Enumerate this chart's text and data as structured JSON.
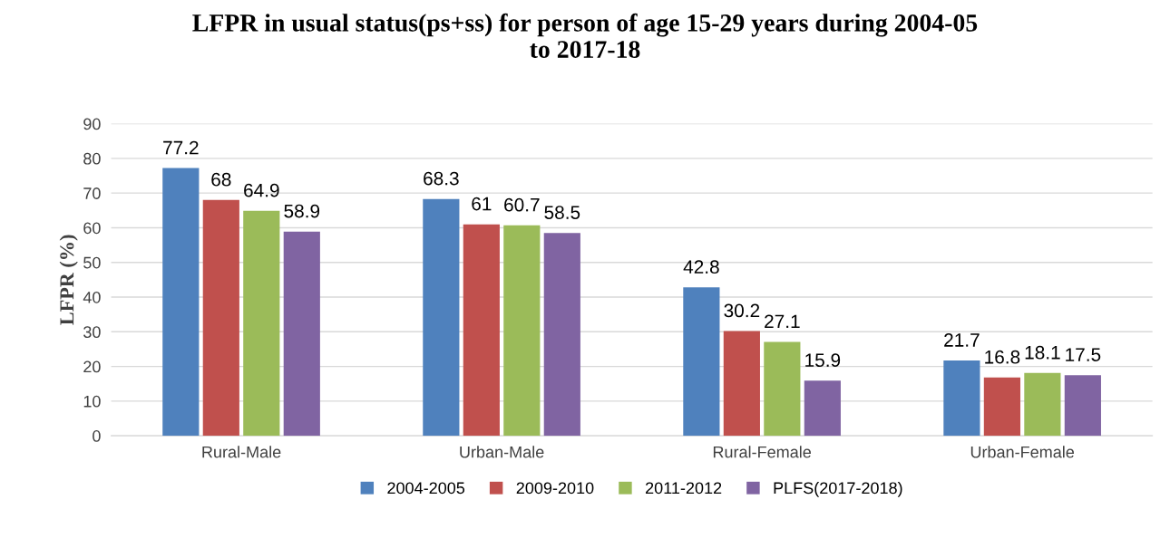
{
  "chart_data": {
    "type": "bar",
    "title": "LFPR in usual status(ps+ss) for person of age 15-29 years during 2004-05\nto 2017-18",
    "ylabel": "LFPR (%)",
    "categories": [
      "Rural-Male",
      "Urban-Male",
      "Rural-Female",
      "Urban-Female"
    ],
    "series": [
      {
        "name": "2004-2005",
        "color": "#4f81bd",
        "values": [
          77.2,
          68.3,
          42.8,
          21.7
        ]
      },
      {
        "name": "2009-2010",
        "color": "#c0504d",
        "values": [
          68,
          61,
          30.2,
          16.8
        ]
      },
      {
        "name": "2011-2012",
        "color": "#9bbb59",
        "values": [
          64.9,
          60.7,
          27.1,
          18.1
        ]
      },
      {
        "name": "PLFS(2017-2018)",
        "color": "#8064a2",
        "values": [
          58.9,
          58.5,
          15.9,
          17.5
        ]
      }
    ],
    "ylim": [
      0,
      90
    ],
    "yticks": [
      0,
      10,
      20,
      30,
      40,
      50,
      60,
      70,
      80,
      90
    ],
    "grid": "y",
    "legend": "bottom",
    "data_labels": true
  }
}
